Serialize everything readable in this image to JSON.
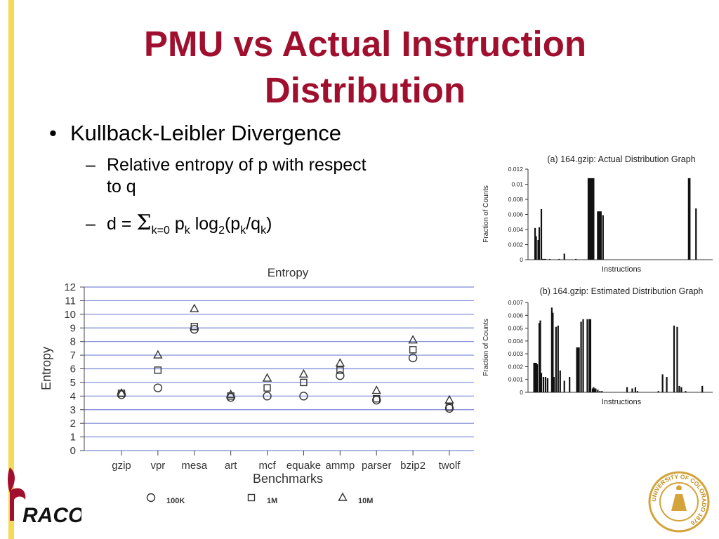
{
  "slide": {
    "title_line1": "PMU vs Actual Instruction",
    "title_line2": "Distribution",
    "bullet": "Kullback-Leibler Divergence",
    "sub1_line1": "Relative entropy of p with respect",
    "sub1_line2": "to q",
    "formula": {
      "d": "d =",
      "sigma": "Σ",
      "sub_k0": "k=0",
      "p": "p",
      "k": "k",
      "log": "log",
      "two": "2",
      "open": "(p",
      "slash": "/q",
      "close": ")"
    },
    "logo_text": "RACO",
    "seal_text": "UNIVERSITY OF COLORADO 1876",
    "colors": {
      "title": "#a0102e",
      "side_bar": "#f3da57",
      "grid": "#7a86d6"
    }
  },
  "chart_data": [
    {
      "type": "scatter",
      "title": "Entropy",
      "xlabel": "Benchmarks",
      "ylabel": "Entropy",
      "categories": [
        "gzip",
        "vpr",
        "mesa",
        "art",
        "mcf",
        "equake",
        "ammp",
        "parser",
        "bzip2",
        "twolf"
      ],
      "ylim": [
        0,
        12
      ],
      "yticks": [
        0,
        1,
        2,
        3,
        4,
        5,
        6,
        7,
        8,
        9,
        10,
        11,
        12
      ],
      "grid": true,
      "legend_position": "bottom",
      "series": [
        {
          "name": "100K",
          "marker": "circle",
          "values": [
            4.1,
            4.6,
            8.9,
            3.9,
            4.0,
            4.0,
            5.5,
            3.7,
            6.8,
            3.1
          ]
        },
        {
          "name": "1M",
          "marker": "square",
          "values": [
            4.2,
            5.9,
            9.1,
            4.0,
            4.6,
            5.0,
            5.9,
            3.8,
            7.4,
            3.2
          ]
        },
        {
          "name": "10M",
          "marker": "triangle",
          "values": [
            4.2,
            7.0,
            10.4,
            4.1,
            5.3,
            5.6,
            6.4,
            4.4,
            8.1,
            3.7
          ]
        }
      ]
    },
    {
      "type": "bar",
      "title": "(a) 164.gzip: Actual Distribution Graph",
      "xlabel": "Instructions",
      "ylabel": "Fraction of Counts",
      "ylim": [
        0,
        0.012
      ],
      "yticks": [
        "0",
        "0.002",
        "0.004",
        "0.006",
        "0.008",
        "0.01",
        "0.012"
      ],
      "x": [
        2,
        3,
        5,
        6,
        8,
        9,
        10,
        11,
        12,
        16,
        25,
        30,
        41,
        53,
        54,
        55,
        56,
        57,
        58,
        62,
        63,
        64,
        65,
        67,
        149,
        150,
        156
      ],
      "values": [
        0.0042,
        0.0031,
        0.0026,
        0.0043,
        0.0067,
        0.0001,
        0.0001,
        0.0001,
        0.0001,
        0.0001,
        0.0001,
        0.0008,
        0.0001,
        0.0108,
        0.0108,
        0.0108,
        0.0108,
        0.0108,
        0.0108,
        0.0064,
        0.0064,
        0.0064,
        0.0064,
        0.0059,
        0.0108,
        0.0108,
        0.0068
      ]
    },
    {
      "type": "bar",
      "title": "(b) 164.gzip: Estimated Distribution Graph",
      "xlabel": "Instructions",
      "ylabel": "Fraction of Counts",
      "ylim": [
        0,
        0.007
      ],
      "yticks": [
        "0",
        "0.001",
        "0.002",
        "0.003",
        "0.004",
        "0.005",
        "0.006",
        "0.007"
      ],
      "x": [
        1,
        2,
        3,
        4,
        6,
        7,
        8,
        10,
        12,
        14,
        18,
        19,
        20,
        22,
        24,
        26,
        30,
        35,
        42,
        43,
        44,
        46,
        48,
        52,
        54,
        55,
        57,
        58,
        59,
        60,
        62,
        64,
        66,
        90,
        95,
        98,
        100,
        120,
        124,
        128,
        135,
        138,
        140,
        142,
        146,
        162
      ],
      "values": [
        0.0023,
        0.0023,
        0.0023,
        0.0022,
        0.0054,
        0.0056,
        0.0015,
        0.0012,
        0.0012,
        0.0011,
        0.0066,
        0.0062,
        0.0012,
        0.0051,
        0.0052,
        0.0017,
        0.0009,
        0.0012,
        0.0035,
        0.0035,
        0.0035,
        0.0055,
        0.0057,
        0.0057,
        0.0057,
        0.0057,
        0.0003,
        0.0004,
        0.0003,
        0.0003,
        0.0002,
        0.0001,
        0.0001,
        0.0004,
        0.0003,
        0.0004,
        0.0001,
        0.0001,
        0.0014,
        0.0012,
        0.0052,
        0.0051,
        0.0005,
        0.0004,
        0.0001,
        0.0005
      ]
    }
  ]
}
